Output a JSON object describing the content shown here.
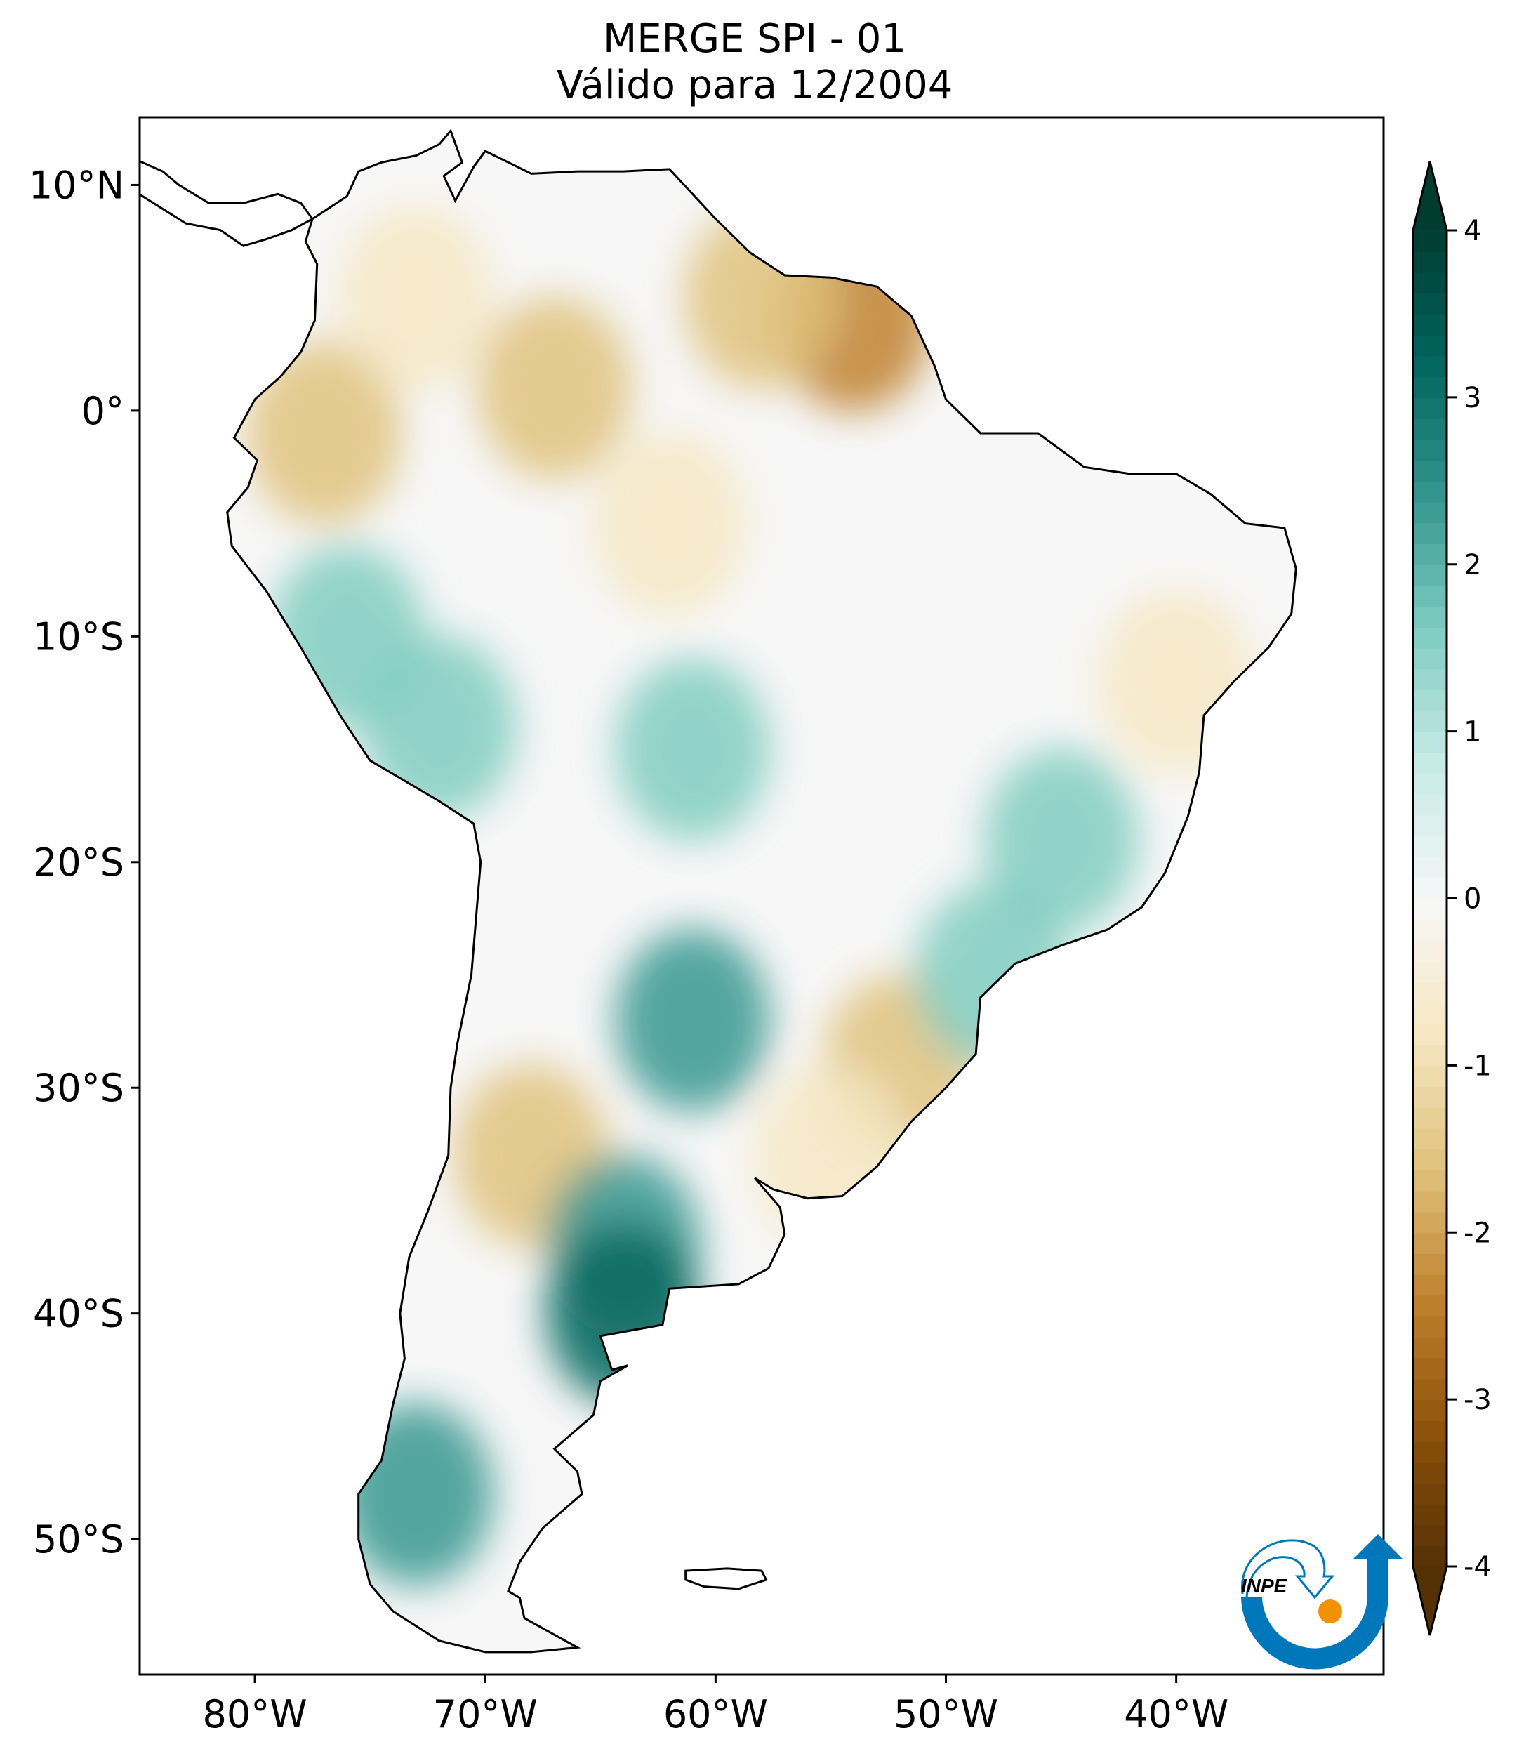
{
  "title": {
    "line1": "MERGE   SPI - 01",
    "line2": "Válido para 12/2004"
  },
  "logo": {
    "text": "INPE",
    "colors": {
      "blue": "#0077bb",
      "orange": "#f39200"
    }
  },
  "chart_data": {
    "type": "heatmap",
    "title": "MERGE   SPI - 01 / Válido para 12/2004",
    "lon_range": [
      -85,
      -31
    ],
    "lat_range": [
      -56,
      13
    ],
    "x_ticks": [
      {
        "v": -80,
        "label": "80°W"
      },
      {
        "v": -70,
        "label": "70°W"
      },
      {
        "v": -60,
        "label": "60°W"
      },
      {
        "v": -50,
        "label": "50°W"
      },
      {
        "v": -40,
        "label": "40°W"
      }
    ],
    "y_ticks": [
      {
        "v": 10,
        "label": "10°N"
      },
      {
        "v": 0,
        "label": "0°"
      },
      {
        "v": -10,
        "label": "10°S"
      },
      {
        "v": -20,
        "label": "20°S"
      },
      {
        "v": -30,
        "label": "30°S"
      },
      {
        "v": -40,
        "label": "40°S"
      },
      {
        "v": -50,
        "label": "50°S"
      }
    ],
    "colorbar": {
      "range": [
        -4,
        4
      ],
      "extend": "both",
      "ticks": [
        {
          "v": 4,
          "label": "4"
        },
        {
          "v": 3,
          "label": "3"
        },
        {
          "v": 2,
          "label": "2"
        },
        {
          "v": 1,
          "label": "1"
        },
        {
          "v": 0,
          "label": "0"
        },
        {
          "v": -1,
          "label": "-1"
        },
        {
          "v": -2,
          "label": "-2"
        },
        {
          "v": -3,
          "label": "-3"
        },
        {
          "v": -4,
          "label": "-4"
        }
      ],
      "colormap": "BrBG",
      "colors": [
        "#543005",
        "#8c510a",
        "#bf812d",
        "#dfc27d",
        "#f6e8c3",
        "#f7f7f7",
        "#c7eae5",
        "#80cdc1",
        "#35978f",
        "#01665e",
        "#003c30"
      ]
    },
    "features": [
      {
        "lon": -54,
        "lat": 4,
        "spi": -2.8
      },
      {
        "lon": -58,
        "lat": 5,
        "spi": -1.8
      },
      {
        "lon": -67,
        "lat": 1,
        "spi": -1.8
      },
      {
        "lon": -77,
        "lat": -1,
        "spi": -1.8
      },
      {
        "lon": -62,
        "lat": -5,
        "spi": -1.2
      },
      {
        "lon": -73,
        "lat": 5,
        "spi": -1.0
      },
      {
        "lon": -40,
        "lat": -12,
        "spi": -1.2
      },
      {
        "lon": -52,
        "lat": -29,
        "spi": -1.6
      },
      {
        "lon": -55,
        "lat": -33,
        "spi": -1.2
      },
      {
        "lon": -68,
        "lat": -33,
        "spi": -1.4
      },
      {
        "lon": -76,
        "lat": -10,
        "spi": 1.5
      },
      {
        "lon": -72,
        "lat": -14,
        "spi": 1.3
      },
      {
        "lon": -61,
        "lat": -15,
        "spi": 1.5
      },
      {
        "lon": -45,
        "lat": -19,
        "spi": 1.5
      },
      {
        "lon": -61,
        "lat": -27,
        "spi": 2.2
      },
      {
        "lon": -64,
        "lat": -37,
        "spi": 2.0
      },
      {
        "lon": -64,
        "lat": -40,
        "spi": 2.8
      },
      {
        "lon": -73,
        "lat": -48,
        "spi": 2.0
      },
      {
        "lon": -48,
        "lat": -25,
        "spi": 1.8
      }
    ]
  }
}
